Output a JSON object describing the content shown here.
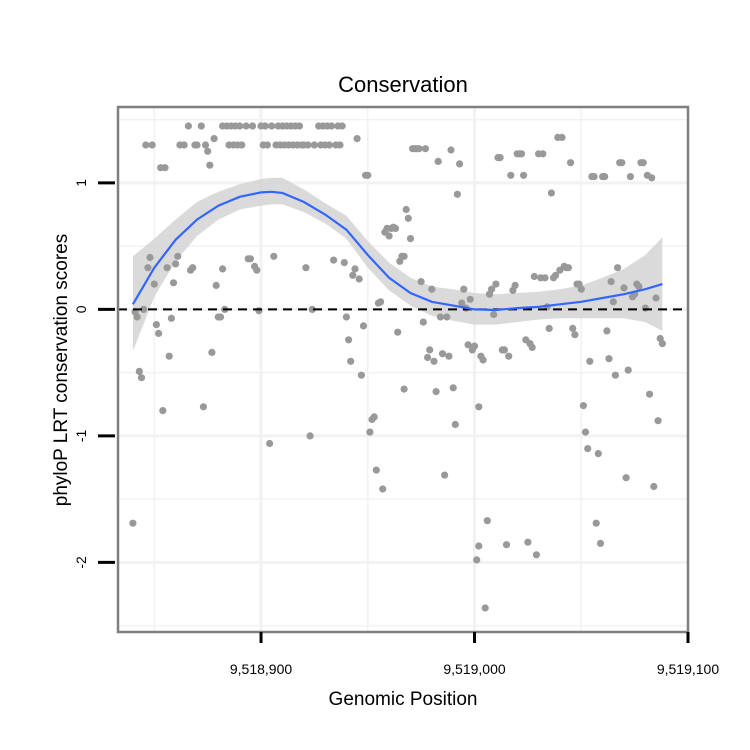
{
  "chart_data": {
    "type": "scatter",
    "title": "Conservation",
    "xlabel": "Genomic Position",
    "ylabel": "phyloP LRT conservation scores",
    "xlim": [
      9518833,
      9519100
    ],
    "ylim": [
      -2.55,
      1.6
    ],
    "x_ticks": [
      {
        "value": 9518900,
        "label": "9,518,900"
      },
      {
        "value": 9519000,
        "label": "9,519,000"
      },
      {
        "value": 9519100,
        "label": "9,519,100"
      }
    ],
    "y_ticks": [
      {
        "value": -2,
        "label": "-2"
      },
      {
        "value": -1,
        "label": "-1"
      },
      {
        "value": 0,
        "label": "0"
      },
      {
        "value": 1,
        "label": "1"
      }
    ],
    "grid": true,
    "reference_line": {
      "y": 0,
      "style": "dashed",
      "color": "#000000"
    },
    "colors": {
      "points": "#999999",
      "smooth": "#3366ff",
      "band": "#d3d3d3",
      "panel_border": "#7f7f7f",
      "grid": "#f2f2f2"
    },
    "points": [
      [
        9518840,
        -1.69
      ],
      [
        9518841,
        -0.02
      ],
      [
        9518842,
        -0.06
      ],
      [
        9518843,
        -0.49
      ],
      [
        9518844,
        -0.54
      ],
      [
        9518845,
        0.0
      ],
      [
        9518846,
        1.3
      ],
      [
        9518847,
        0.33
      ],
      [
        9518848,
        0.41
      ],
      [
        9518849,
        1.3
      ],
      [
        9518850,
        0.2
      ],
      [
        9518851,
        -0.12
      ],
      [
        9518852,
        -0.19
      ],
      [
        9518853,
        1.12
      ],
      [
        9518854,
        -0.8
      ],
      [
        9518855,
        1.12
      ],
      [
        9518856,
        0.33
      ],
      [
        9518857,
        -0.37
      ],
      [
        9518858,
        -0.07
      ],
      [
        9518859,
        0.21
      ],
      [
        9518860,
        0.36
      ],
      [
        9518861,
        0.42
      ],
      [
        9518862,
        1.3
      ],
      [
        9518864,
        1.3
      ],
      [
        9518866,
        1.45
      ],
      [
        9518867,
        0.31
      ],
      [
        9518868,
        0.33
      ],
      [
        9518869,
        1.3
      ],
      [
        9518870,
        1.3
      ],
      [
        9518872,
        1.45
      ],
      [
        9518873,
        -0.77
      ],
      [
        9518874,
        1.3
      ],
      [
        9518875,
        1.25
      ],
      [
        9518876,
        1.14
      ],
      [
        9518877,
        -0.34
      ],
      [
        9518878,
        1.35
      ],
      [
        9518879,
        0.19
      ],
      [
        9518880,
        -0.06
      ],
      [
        9518881,
        -0.06
      ],
      [
        9518882,
        1.45
      ],
      [
        9518882,
        0.32
      ],
      [
        9518883,
        0.0
      ],
      [
        9518884,
        1.45
      ],
      [
        9518885,
        1.3
      ],
      [
        9518886,
        1.45
      ],
      [
        9518887,
        1.3
      ],
      [
        9518888,
        1.45
      ],
      [
        9518889,
        1.3
      ],
      [
        9518890,
        1.45
      ],
      [
        9518891,
        1.3
      ],
      [
        9518893,
        1.45
      ],
      [
        9518894,
        0.4
      ],
      [
        9518895,
        0.4
      ],
      [
        9518896,
        1.45
      ],
      [
        9518897,
        0.34
      ],
      [
        9518898,
        0.31
      ],
      [
        9518899,
        -0.01
      ],
      [
        9518900,
        1.45
      ],
      [
        9518901,
        1.3
      ],
      [
        9518902,
        1.45
      ],
      [
        9518903,
        1.3
      ],
      [
        9518904,
        -1.06
      ],
      [
        9518905,
        1.45
      ],
      [
        9518906,
        0.42
      ],
      [
        9518907,
        1.3
      ],
      [
        9518908,
        1.45
      ],
      [
        9518909,
        1.3
      ],
      [
        9518910,
        1.45
      ],
      [
        9518911,
        1.3
      ],
      [
        9518912,
        1.45
      ],
      [
        9518913,
        1.3
      ],
      [
        9518914,
        1.45
      ],
      [
        9518915,
        1.3
      ],
      [
        9518916,
        1.45
      ],
      [
        9518917,
        1.3
      ],
      [
        9518918,
        1.45
      ],
      [
        9518919,
        1.3
      ],
      [
        9518920,
        1.3
      ],
      [
        9518921,
        0.33
      ],
      [
        9518922,
        1.3
      ],
      [
        9518923,
        -1.0
      ],
      [
        9518924,
        0.0
      ],
      [
        9518925,
        1.3
      ],
      [
        9518927,
        1.45
      ],
      [
        9518928,
        1.3
      ],
      [
        9518929,
        1.45
      ],
      [
        9518930,
        1.3
      ],
      [
        9518931,
        1.45
      ],
      [
        9518932,
        1.3
      ],
      [
        9518933,
        1.45
      ],
      [
        9518934,
        0.39
      ],
      [
        9518935,
        1.3
      ],
      [
        9518936,
        1.45
      ],
      [
        9518937,
        1.3
      ],
      [
        9518938,
        1.45
      ],
      [
        9518939,
        0.37
      ],
      [
        9518940,
        -0.06
      ],
      [
        9518941,
        -0.24
      ],
      [
        9518942,
        -0.41
      ],
      [
        9518943,
        0.27
      ],
      [
        9518944,
        0.32
      ],
      [
        9518945,
        1.35
      ],
      [
        9518946,
        0.24
      ],
      [
        9518947,
        -0.52
      ],
      [
        9518948,
        -0.13
      ],
      [
        9518949,
        1.06
      ],
      [
        9518950,
        1.06
      ],
      [
        9518951,
        -0.97
      ],
      [
        9518952,
        -0.87
      ],
      [
        9518953,
        -0.85
      ],
      [
        9518954,
        -1.27
      ],
      [
        9518955,
        0.05
      ],
      [
        9518956,
        0.06
      ],
      [
        9518957,
        -1.42
      ],
      [
        9518958,
        0.61
      ],
      [
        9518959,
        0.64
      ],
      [
        9518960,
        0.58
      ],
      [
        9518961,
        0.64
      ],
      [
        9518962,
        0.65
      ],
      [
        9518963,
        0.64
      ],
      [
        9518964,
        -0.18
      ],
      [
        9518965,
        0.38
      ],
      [
        9518966,
        0.42
      ],
      [
        9518967,
        0.42
      ],
      [
        9518967,
        -0.63
      ],
      [
        9518968,
        0.79
      ],
      [
        9518969,
        0.72
      ],
      [
        9518970,
        0.56
      ],
      [
        9518971,
        1.27
      ],
      [
        9518972,
        1.27
      ],
      [
        9518973,
        1.27
      ],
      [
        9518974,
        1.27
      ],
      [
        9518975,
        0.22
      ],
      [
        9518976,
        -0.1
      ],
      [
        9518977,
        1.27
      ],
      [
        9518978,
        -0.38
      ],
      [
        9518979,
        -0.32
      ],
      [
        9518980,
        0.16
      ],
      [
        9518981,
        -0.41
      ],
      [
        9518982,
        -0.65
      ],
      [
        9518983,
        1.17
      ],
      [
        9518984,
        -0.06
      ],
      [
        9518985,
        -0.35
      ],
      [
        9518986,
        -1.31
      ],
      [
        9518987,
        -0.06
      ],
      [
        9518988,
        -0.37
      ],
      [
        9518989,
        1.26
      ],
      [
        9518990,
        -0.62
      ],
      [
        9518991,
        -0.91
      ],
      [
        9518992,
        0.91
      ],
      [
        9518993,
        1.15
      ],
      [
        9518994,
        0.05
      ],
      [
        9518995,
        0.16
      ],
      [
        9518996,
        0.01
      ],
      [
        9518997,
        -0.28
      ],
      [
        9518998,
        0.08
      ],
      [
        9518999,
        -0.32
      ],
      [
        9519000,
        -0.29
      ],
      [
        9519001,
        -1.98
      ],
      [
        9519002,
        -1.87
      ],
      [
        9519002,
        -0.77
      ],
      [
        9519003,
        -0.37
      ],
      [
        9519004,
        -0.4
      ],
      [
        9519005,
        -2.36
      ],
      [
        9519006,
        -1.67
      ],
      [
        9519007,
        0.12
      ],
      [
        9519008,
        0.16
      ],
      [
        9519009,
        -0.04
      ],
      [
        9519010,
        0.2
      ],
      [
        9519011,
        1.2
      ],
      [
        9519012,
        1.2
      ],
      [
        9519013,
        -0.32
      ],
      [
        9519014,
        -0.32
      ],
      [
        9519015,
        -1.86
      ],
      [
        9519016,
        -0.37
      ],
      [
        9519017,
        1.06
      ],
      [
        9519018,
        0.15
      ],
      [
        9519019,
        0.19
      ],
      [
        9519020,
        1.23
      ],
      [
        9519021,
        1.23
      ],
      [
        9519022,
        1.23
      ],
      [
        9519023,
        1.06
      ],
      [
        9519024,
        -0.24
      ],
      [
        9519025,
        -1.84
      ],
      [
        9519026,
        -0.27
      ],
      [
        9519027,
        -0.3
      ],
      [
        9519028,
        0.26
      ],
      [
        9519029,
        -1.94
      ],
      [
        9519030,
        1.23
      ],
      [
        9519031,
        0.25
      ],
      [
        9519032,
        1.23
      ],
      [
        9519033,
        0.25
      ],
      [
        9519034,
        0.02
      ],
      [
        9519035,
        -0.15
      ],
      [
        9519036,
        0.92
      ],
      [
        9519037,
        0.25
      ],
      [
        9519038,
        0.27
      ],
      [
        9519039,
        1.36
      ],
      [
        9519040,
        0.31
      ],
      [
        9519041,
        1.36
      ],
      [
        9519042,
        0.34
      ],
      [
        9519043,
        0.33
      ],
      [
        9519044,
        0.33
      ],
      [
        9519045,
        1.16
      ],
      [
        9519046,
        -0.15
      ],
      [
        9519047,
        -0.2
      ],
      [
        9519048,
        0.2
      ],
      [
        9519049,
        0.2
      ],
      [
        9519050,
        0.16
      ],
      [
        9519051,
        -0.76
      ],
      [
        9519052,
        -0.97
      ],
      [
        9519053,
        -1.1
      ],
      [
        9519054,
        -0.41
      ],
      [
        9519055,
        1.05
      ],
      [
        9519056,
        1.05
      ],
      [
        9519057,
        -1.69
      ],
      [
        9519058,
        -1.14
      ],
      [
        9519059,
        -1.85
      ],
      [
        9519060,
        1.05
      ],
      [
        9519061,
        1.05
      ],
      [
        9519062,
        -0.17
      ],
      [
        9519063,
        -0.39
      ],
      [
        9519064,
        0.22
      ],
      [
        9519065,
        0.06
      ],
      [
        9519066,
        -0.52
      ],
      [
        9519067,
        0.33
      ],
      [
        9519068,
        1.16
      ],
      [
        9519069,
        1.16
      ],
      [
        9519070,
        0.17
      ],
      [
        9519071,
        -1.33
      ],
      [
        9519072,
        -0.48
      ],
      [
        9519073,
        1.05
      ],
      [
        9519074,
        0.1
      ],
      [
        9519075,
        0.12
      ],
      [
        9519076,
        0.2
      ],
      [
        9519077,
        0.18
      ],
      [
        9519078,
        1.16
      ],
      [
        9519079,
        1.16
      ],
      [
        9519080,
        0.01
      ],
      [
        9519081,
        1.06
      ],
      [
        9519082,
        -0.67
      ],
      [
        9519083,
        1.04
      ],
      [
        9519084,
        -1.4
      ],
      [
        9519085,
        0.09
      ],
      [
        9519086,
        -0.88
      ],
      [
        9519087,
        -0.23
      ],
      [
        9519088,
        -0.27
      ]
    ],
    "smooth": {
      "method": "loess",
      "x": [
        9518840,
        9518850,
        9518860,
        9518870,
        9518880,
        9518890,
        9518900,
        9518905,
        9518910,
        9518920,
        9518930,
        9518940,
        9518950,
        9518960,
        9518970,
        9518980,
        9518990,
        9519000,
        9519010,
        9519020,
        9519030,
        9519040,
        9519050,
        9519060,
        9519070,
        9519080,
        9519088
      ],
      "y": [
        0.04,
        0.33,
        0.55,
        0.71,
        0.82,
        0.89,
        0.925,
        0.93,
        0.92,
        0.85,
        0.75,
        0.63,
        0.43,
        0.25,
        0.13,
        0.06,
        0.03,
        0.0,
        -0.005,
        0.01,
        0.02,
        0.04,
        0.06,
        0.09,
        0.12,
        0.16,
        0.2
      ],
      "lower": [
        -0.33,
        0.1,
        0.38,
        0.58,
        0.71,
        0.79,
        0.82,
        0.83,
        0.83,
        0.77,
        0.68,
        0.56,
        0.33,
        0.15,
        0.03,
        -0.05,
        -0.09,
        -0.12,
        -0.12,
        -0.1,
        -0.08,
        -0.07,
        -0.07,
        -0.07,
        -0.07,
        -0.1,
        -0.17
      ],
      "upper": [
        0.42,
        0.56,
        0.71,
        0.85,
        0.93,
        0.99,
        1.03,
        1.04,
        1.04,
        0.95,
        0.84,
        0.74,
        0.54,
        0.37,
        0.25,
        0.18,
        0.16,
        0.13,
        0.12,
        0.13,
        0.14,
        0.16,
        0.19,
        0.25,
        0.32,
        0.43,
        0.57
      ]
    }
  }
}
